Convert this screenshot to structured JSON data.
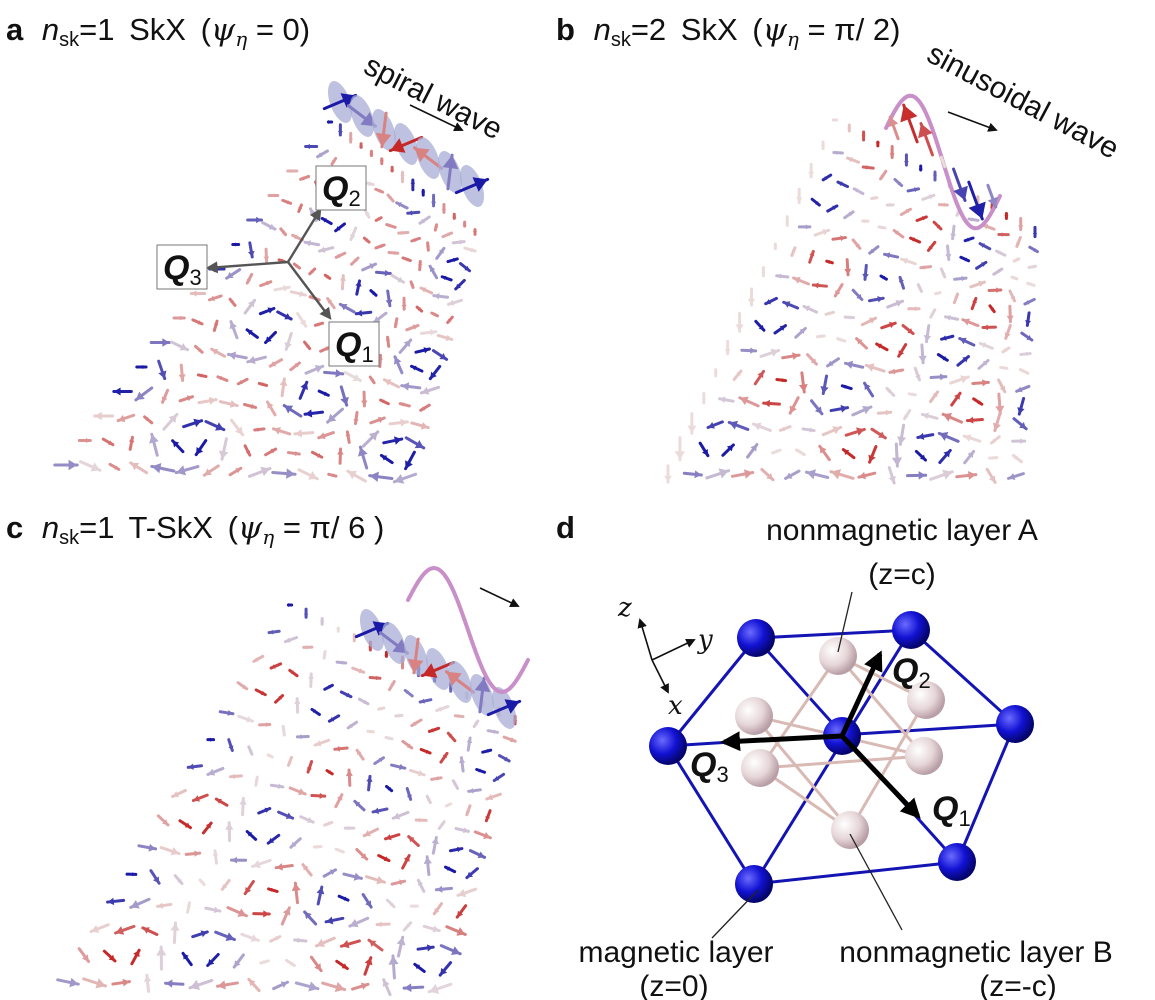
{
  "panels": {
    "a": {
      "letter": "a",
      "n_symbol": "n",
      "n_sub": "sk",
      "n_value": "=1",
      "texture": "SkX",
      "paren_open": "(",
      "psi": "ψ",
      "psi_sub": "η",
      "phase": " = 0",
      "paren_close": ")",
      "wave_label": "spiral wave",
      "q_vectors": [
        {
          "symbol": "Q",
          "sub": "1"
        },
        {
          "symbol": "Q",
          "sub": "2"
        },
        {
          "symbol": "Q",
          "sub": "3"
        }
      ]
    },
    "b": {
      "letter": "b",
      "n_symbol": "n",
      "n_sub": "sk",
      "n_value": "=2",
      "texture": "SkX",
      "paren_open": "(",
      "psi": "ψ",
      "psi_sub": "η",
      "phase": " = π/ 2",
      "paren_close": ")",
      "wave_label": "sinusoidal wave"
    },
    "c": {
      "letter": "c",
      "n_symbol": "n",
      "n_sub": "sk",
      "n_value": "=1",
      "texture": "T-SkX",
      "paren_open": "(",
      "psi": "ψ",
      "psi_sub": "η",
      "phase": " = π/ 6 ",
      "paren_close": ")"
    },
    "d": {
      "letter": "d",
      "layer_a": "nonmagnetic layer A",
      "layer_a_z": "(z=c)",
      "layer_b": "nonmagnetic layer B",
      "layer_b_z": "(z=-c)",
      "magnetic": "magnetic layer",
      "magnetic_z": "(z=0)",
      "axes": {
        "x": "x",
        "y": "y",
        "z": "z"
      },
      "q_vectors": [
        {
          "symbol": "Q",
          "sub": "1"
        },
        {
          "symbol": "Q",
          "sub": "2"
        },
        {
          "symbol": "Q",
          "sub": "3"
        }
      ]
    }
  },
  "colors": {
    "spin_up_red": "#c62828",
    "spin_down_blue": "#1a1aa6",
    "magnetic_atom": "#1010c8",
    "nonmagnetic_atom": "#e8d8d8",
    "bond": "#1414b4",
    "wave_curve": "#c98fc8",
    "ellipse": "#a8acd6"
  }
}
